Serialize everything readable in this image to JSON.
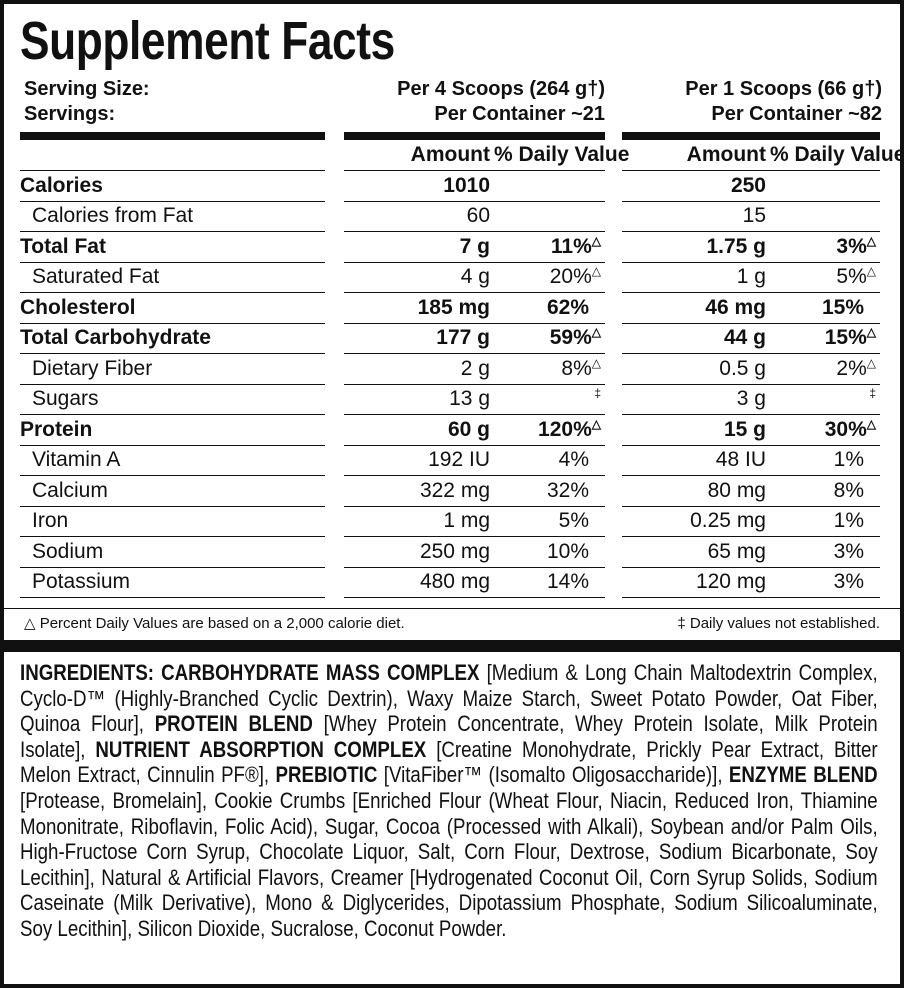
{
  "title": "Supplement Facts",
  "serving": {
    "labels": [
      "Serving Size:",
      "Servings:"
    ],
    "column_1": [
      "Per 4 Scoops (264 g†)",
      "Per Container ~21"
    ],
    "column_2": [
      "Per 1 Scoops (66 g†)",
      "Per Container ~82"
    ]
  },
  "headers": [
    "Amount",
    "% Daily Value",
    "Amount",
    "% Daily Value"
  ],
  "rows": [
    {
      "nutrient": "Calories",
      "bold": true,
      "amount_1": "1010",
      "amount_2": "250"
    },
    {
      "nutrient": "Calories from Fat",
      "indent": true,
      "amount_1": "60",
      "amount_2": "15"
    },
    {
      "nutrient": "Total Fat",
      "bold": true,
      "amount_1": "7 g",
      "dv_1": "11%",
      "note_1": "△",
      "amount_2": "1.75 g",
      "dv_2": "3%",
      "note_2": "△"
    },
    {
      "nutrient": "Saturated Fat",
      "indent": true,
      "amount_1": "4 g",
      "dv_1": "20%",
      "note_1": "△",
      "amount_2": "1 g",
      "dv_2": "5%",
      "note_2": "△"
    },
    {
      "nutrient": "Cholesterol",
      "bold": true,
      "amount_1": "185 mg",
      "dv_1": "62%",
      "amount_2": "46 mg",
      "dv_2": "15%"
    },
    {
      "nutrient": "Total Carbohydrate",
      "bold": true,
      "amount_1": "177 g",
      "dv_1": "59%",
      "note_1": "△",
      "amount_2": "44 g",
      "dv_2": "15%",
      "note_2": "△"
    },
    {
      "nutrient": "Dietary Fiber",
      "indent": true,
      "amount_1": "2 g",
      "dv_1": "8%",
      "note_1": "△",
      "amount_2": "0.5 g",
      "dv_2": "2%",
      "note_2": "△"
    },
    {
      "nutrient": "Sugars",
      "indent": true,
      "amount_1": "13 g",
      "note_1": "‡",
      "amount_2": "3 g",
      "note_2": "‡"
    },
    {
      "nutrient": "Protein",
      "bold": true,
      "amount_1": "60 g",
      "dv_1": "120%",
      "note_1": "△",
      "amount_2": "15 g",
      "dv_2": "30%",
      "note_2": "△"
    },
    {
      "nutrient": "Vitamin A",
      "indent": true,
      "amount_1": "192 IU",
      "dv_1": "4%",
      "amount_2": "48 IU",
      "dv_2": "1%"
    },
    {
      "nutrient": "Calcium",
      "indent": true,
      "amount_1": "322 mg",
      "dv_1": "32%",
      "amount_2": "80 mg",
      "dv_2": "8%"
    },
    {
      "nutrient": "Iron",
      "indent": true,
      "amount_1": "1 mg",
      "dv_1": "5%",
      "amount_2": "0.25 mg",
      "dv_2": "1%"
    },
    {
      "nutrient": "Sodium",
      "indent": true,
      "amount_1": "250 mg",
      "dv_1": "10%",
      "amount_2": "65 mg",
      "dv_2": "3%"
    },
    {
      "nutrient": "Potassium",
      "indent": true,
      "amount_1": "480 mg",
      "dv_1": "14%",
      "amount_2": "120 mg",
      "dv_2": "3%"
    }
  ],
  "footnotes": {
    "left": "△  Percent Daily Values are based on a 2,000 calorie diet.",
    "right": "‡ Daily values not established."
  },
  "ingredients": [
    {
      "text": "INGREDIENTS: CARBOHYDRATE MASS COMPLEX",
      "bold": true
    },
    {
      "text": " [Medium & Long Chain Maltodextrin Complex, Cyclo-D™ (Highly-Branched Cyclic Dextrin), Waxy Maize Starch, Sweet Potato Powder, Oat Fiber, Quinoa Flour], "
    },
    {
      "text": "PROTEIN BLEND",
      "bold": true
    },
    {
      "text": " [Whey Protein Concentrate, Whey Protein Isolate, Milk Protein Isolate], "
    },
    {
      "text": "NUTRIENT ABSORPTION COMPLEX",
      "bold": true
    },
    {
      "text": " [Creatine Monohydrate, Prickly Pear Extract, Bitter Melon Extract, Cinnulin PF®], "
    },
    {
      "text": "PREBIOTIC",
      "bold": true
    },
    {
      "text": " [VitaFiber™ (Isomalto Oligosaccharide)], "
    },
    {
      "text": "ENZYME BLEND",
      "bold": true
    },
    {
      "text": " [Protease, Bromelain], Cookie Crumbs [Enriched Flour (Wheat Flour, Niacin, Reduced Iron, Thiamine Mononitrate, Riboflavin, Folic Acid), Sugar, Cocoa (Processed with Alkali), Soybean and/or Palm Oils, High-Fructose Corn Syrup, Chocolate Liquor, Salt, Corn Flour, Dextrose, Sodium Bicarbonate, Soy Lecithin], Natural & Artificial Flavors, Creamer [Hydrogenated Coconut Oil, Corn Syrup Solids, Sodium Caseinate (Milk Derivative), Mono & Diglycerides, Dipotassium Phosphate, Sodium Silicoaluminate, Soy Lecithin], Silicon Dioxide, Sucralose, Coconut Powder."
    }
  ]
}
